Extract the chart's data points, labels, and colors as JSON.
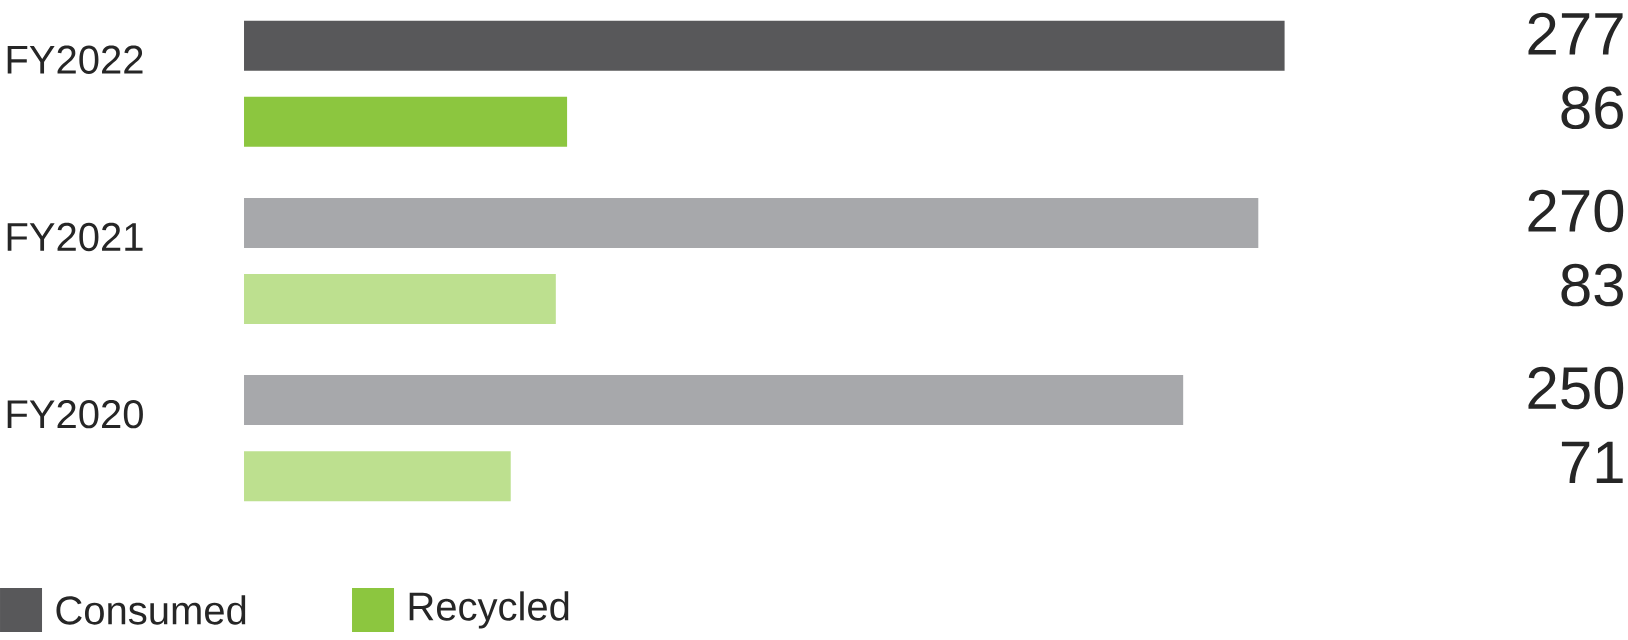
{
  "chart_data": {
    "type": "bar",
    "orientation": "horizontal",
    "categories": [
      "FY2022",
      "FY2021",
      "FY2020"
    ],
    "series": [
      {
        "name": "Consumed",
        "color": "#58585a",
        "colors": [
          "#58585a",
          "#a7a8ab",
          "#a7a8ab"
        ],
        "values": [
          277,
          270,
          250
        ],
        "value_labels": [
          "277",
          "270",
          "250"
        ]
      },
      {
        "name": "Recycled",
        "color": "#8cc63f",
        "colors": [
          "#8cc63f",
          "#bde08f",
          "#bde08f"
        ],
        "values": [
          86,
          83,
          71
        ]
      }
    ],
    "annotations": [
      "86",
      "83",
      "71"
    ],
    "legend": "bottom left"
  }
}
